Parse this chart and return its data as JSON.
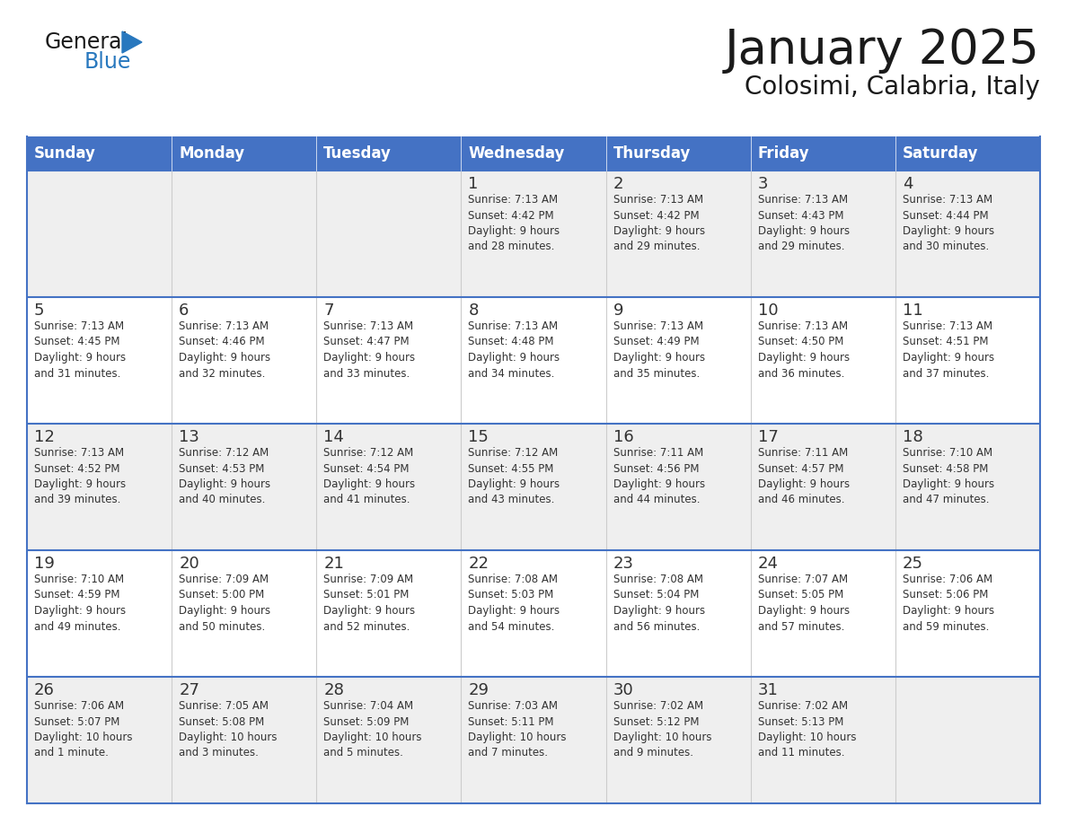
{
  "title": "January 2025",
  "subtitle": "Colosimi, Calabria, Italy",
  "days_of_week": [
    "Sunday",
    "Monday",
    "Tuesday",
    "Wednesday",
    "Thursday",
    "Friday",
    "Saturday"
  ],
  "header_bg": "#4472C4",
  "header_text": "#FFFFFF",
  "row_bg_1": "#EFEFEF",
  "row_bg_2": "#FFFFFF",
  "grid_line_color": "#4472C4",
  "col_line_color": "#CCCCCC",
  "title_color": "#1a1a1a",
  "subtitle_color": "#1a1a1a",
  "cell_text_color": "#333333",
  "day_num_color": "#333333",
  "logo_general_color": "#1a1a1a",
  "logo_blue_color": "#2878BE",
  "weeks": [
    [
      {
        "day": "",
        "info": ""
      },
      {
        "day": "",
        "info": ""
      },
      {
        "day": "",
        "info": ""
      },
      {
        "day": "1",
        "info": "Sunrise: 7:13 AM\nSunset: 4:42 PM\nDaylight: 9 hours\nand 28 minutes."
      },
      {
        "day": "2",
        "info": "Sunrise: 7:13 AM\nSunset: 4:42 PM\nDaylight: 9 hours\nand 29 minutes."
      },
      {
        "day": "3",
        "info": "Sunrise: 7:13 AM\nSunset: 4:43 PM\nDaylight: 9 hours\nand 29 minutes."
      },
      {
        "day": "4",
        "info": "Sunrise: 7:13 AM\nSunset: 4:44 PM\nDaylight: 9 hours\nand 30 minutes."
      }
    ],
    [
      {
        "day": "5",
        "info": "Sunrise: 7:13 AM\nSunset: 4:45 PM\nDaylight: 9 hours\nand 31 minutes."
      },
      {
        "day": "6",
        "info": "Sunrise: 7:13 AM\nSunset: 4:46 PM\nDaylight: 9 hours\nand 32 minutes."
      },
      {
        "day": "7",
        "info": "Sunrise: 7:13 AM\nSunset: 4:47 PM\nDaylight: 9 hours\nand 33 minutes."
      },
      {
        "day": "8",
        "info": "Sunrise: 7:13 AM\nSunset: 4:48 PM\nDaylight: 9 hours\nand 34 minutes."
      },
      {
        "day": "9",
        "info": "Sunrise: 7:13 AM\nSunset: 4:49 PM\nDaylight: 9 hours\nand 35 minutes."
      },
      {
        "day": "10",
        "info": "Sunrise: 7:13 AM\nSunset: 4:50 PM\nDaylight: 9 hours\nand 36 minutes."
      },
      {
        "day": "11",
        "info": "Sunrise: 7:13 AM\nSunset: 4:51 PM\nDaylight: 9 hours\nand 37 minutes."
      }
    ],
    [
      {
        "day": "12",
        "info": "Sunrise: 7:13 AM\nSunset: 4:52 PM\nDaylight: 9 hours\nand 39 minutes."
      },
      {
        "day": "13",
        "info": "Sunrise: 7:12 AM\nSunset: 4:53 PM\nDaylight: 9 hours\nand 40 minutes."
      },
      {
        "day": "14",
        "info": "Sunrise: 7:12 AM\nSunset: 4:54 PM\nDaylight: 9 hours\nand 41 minutes."
      },
      {
        "day": "15",
        "info": "Sunrise: 7:12 AM\nSunset: 4:55 PM\nDaylight: 9 hours\nand 43 minutes."
      },
      {
        "day": "16",
        "info": "Sunrise: 7:11 AM\nSunset: 4:56 PM\nDaylight: 9 hours\nand 44 minutes."
      },
      {
        "day": "17",
        "info": "Sunrise: 7:11 AM\nSunset: 4:57 PM\nDaylight: 9 hours\nand 46 minutes."
      },
      {
        "day": "18",
        "info": "Sunrise: 7:10 AM\nSunset: 4:58 PM\nDaylight: 9 hours\nand 47 minutes."
      }
    ],
    [
      {
        "day": "19",
        "info": "Sunrise: 7:10 AM\nSunset: 4:59 PM\nDaylight: 9 hours\nand 49 minutes."
      },
      {
        "day": "20",
        "info": "Sunrise: 7:09 AM\nSunset: 5:00 PM\nDaylight: 9 hours\nand 50 minutes."
      },
      {
        "day": "21",
        "info": "Sunrise: 7:09 AM\nSunset: 5:01 PM\nDaylight: 9 hours\nand 52 minutes."
      },
      {
        "day": "22",
        "info": "Sunrise: 7:08 AM\nSunset: 5:03 PM\nDaylight: 9 hours\nand 54 minutes."
      },
      {
        "day": "23",
        "info": "Sunrise: 7:08 AM\nSunset: 5:04 PM\nDaylight: 9 hours\nand 56 minutes."
      },
      {
        "day": "24",
        "info": "Sunrise: 7:07 AM\nSunset: 5:05 PM\nDaylight: 9 hours\nand 57 minutes."
      },
      {
        "day": "25",
        "info": "Sunrise: 7:06 AM\nSunset: 5:06 PM\nDaylight: 9 hours\nand 59 minutes."
      }
    ],
    [
      {
        "day": "26",
        "info": "Sunrise: 7:06 AM\nSunset: 5:07 PM\nDaylight: 10 hours\nand 1 minute."
      },
      {
        "day": "27",
        "info": "Sunrise: 7:05 AM\nSunset: 5:08 PM\nDaylight: 10 hours\nand 3 minutes."
      },
      {
        "day": "28",
        "info": "Sunrise: 7:04 AM\nSunset: 5:09 PM\nDaylight: 10 hours\nand 5 minutes."
      },
      {
        "day": "29",
        "info": "Sunrise: 7:03 AM\nSunset: 5:11 PM\nDaylight: 10 hours\nand 7 minutes."
      },
      {
        "day": "30",
        "info": "Sunrise: 7:02 AM\nSunset: 5:12 PM\nDaylight: 10 hours\nand 9 minutes."
      },
      {
        "day": "31",
        "info": "Sunrise: 7:02 AM\nSunset: 5:13 PM\nDaylight: 10 hours\nand 11 minutes."
      },
      {
        "day": "",
        "info": ""
      }
    ]
  ]
}
